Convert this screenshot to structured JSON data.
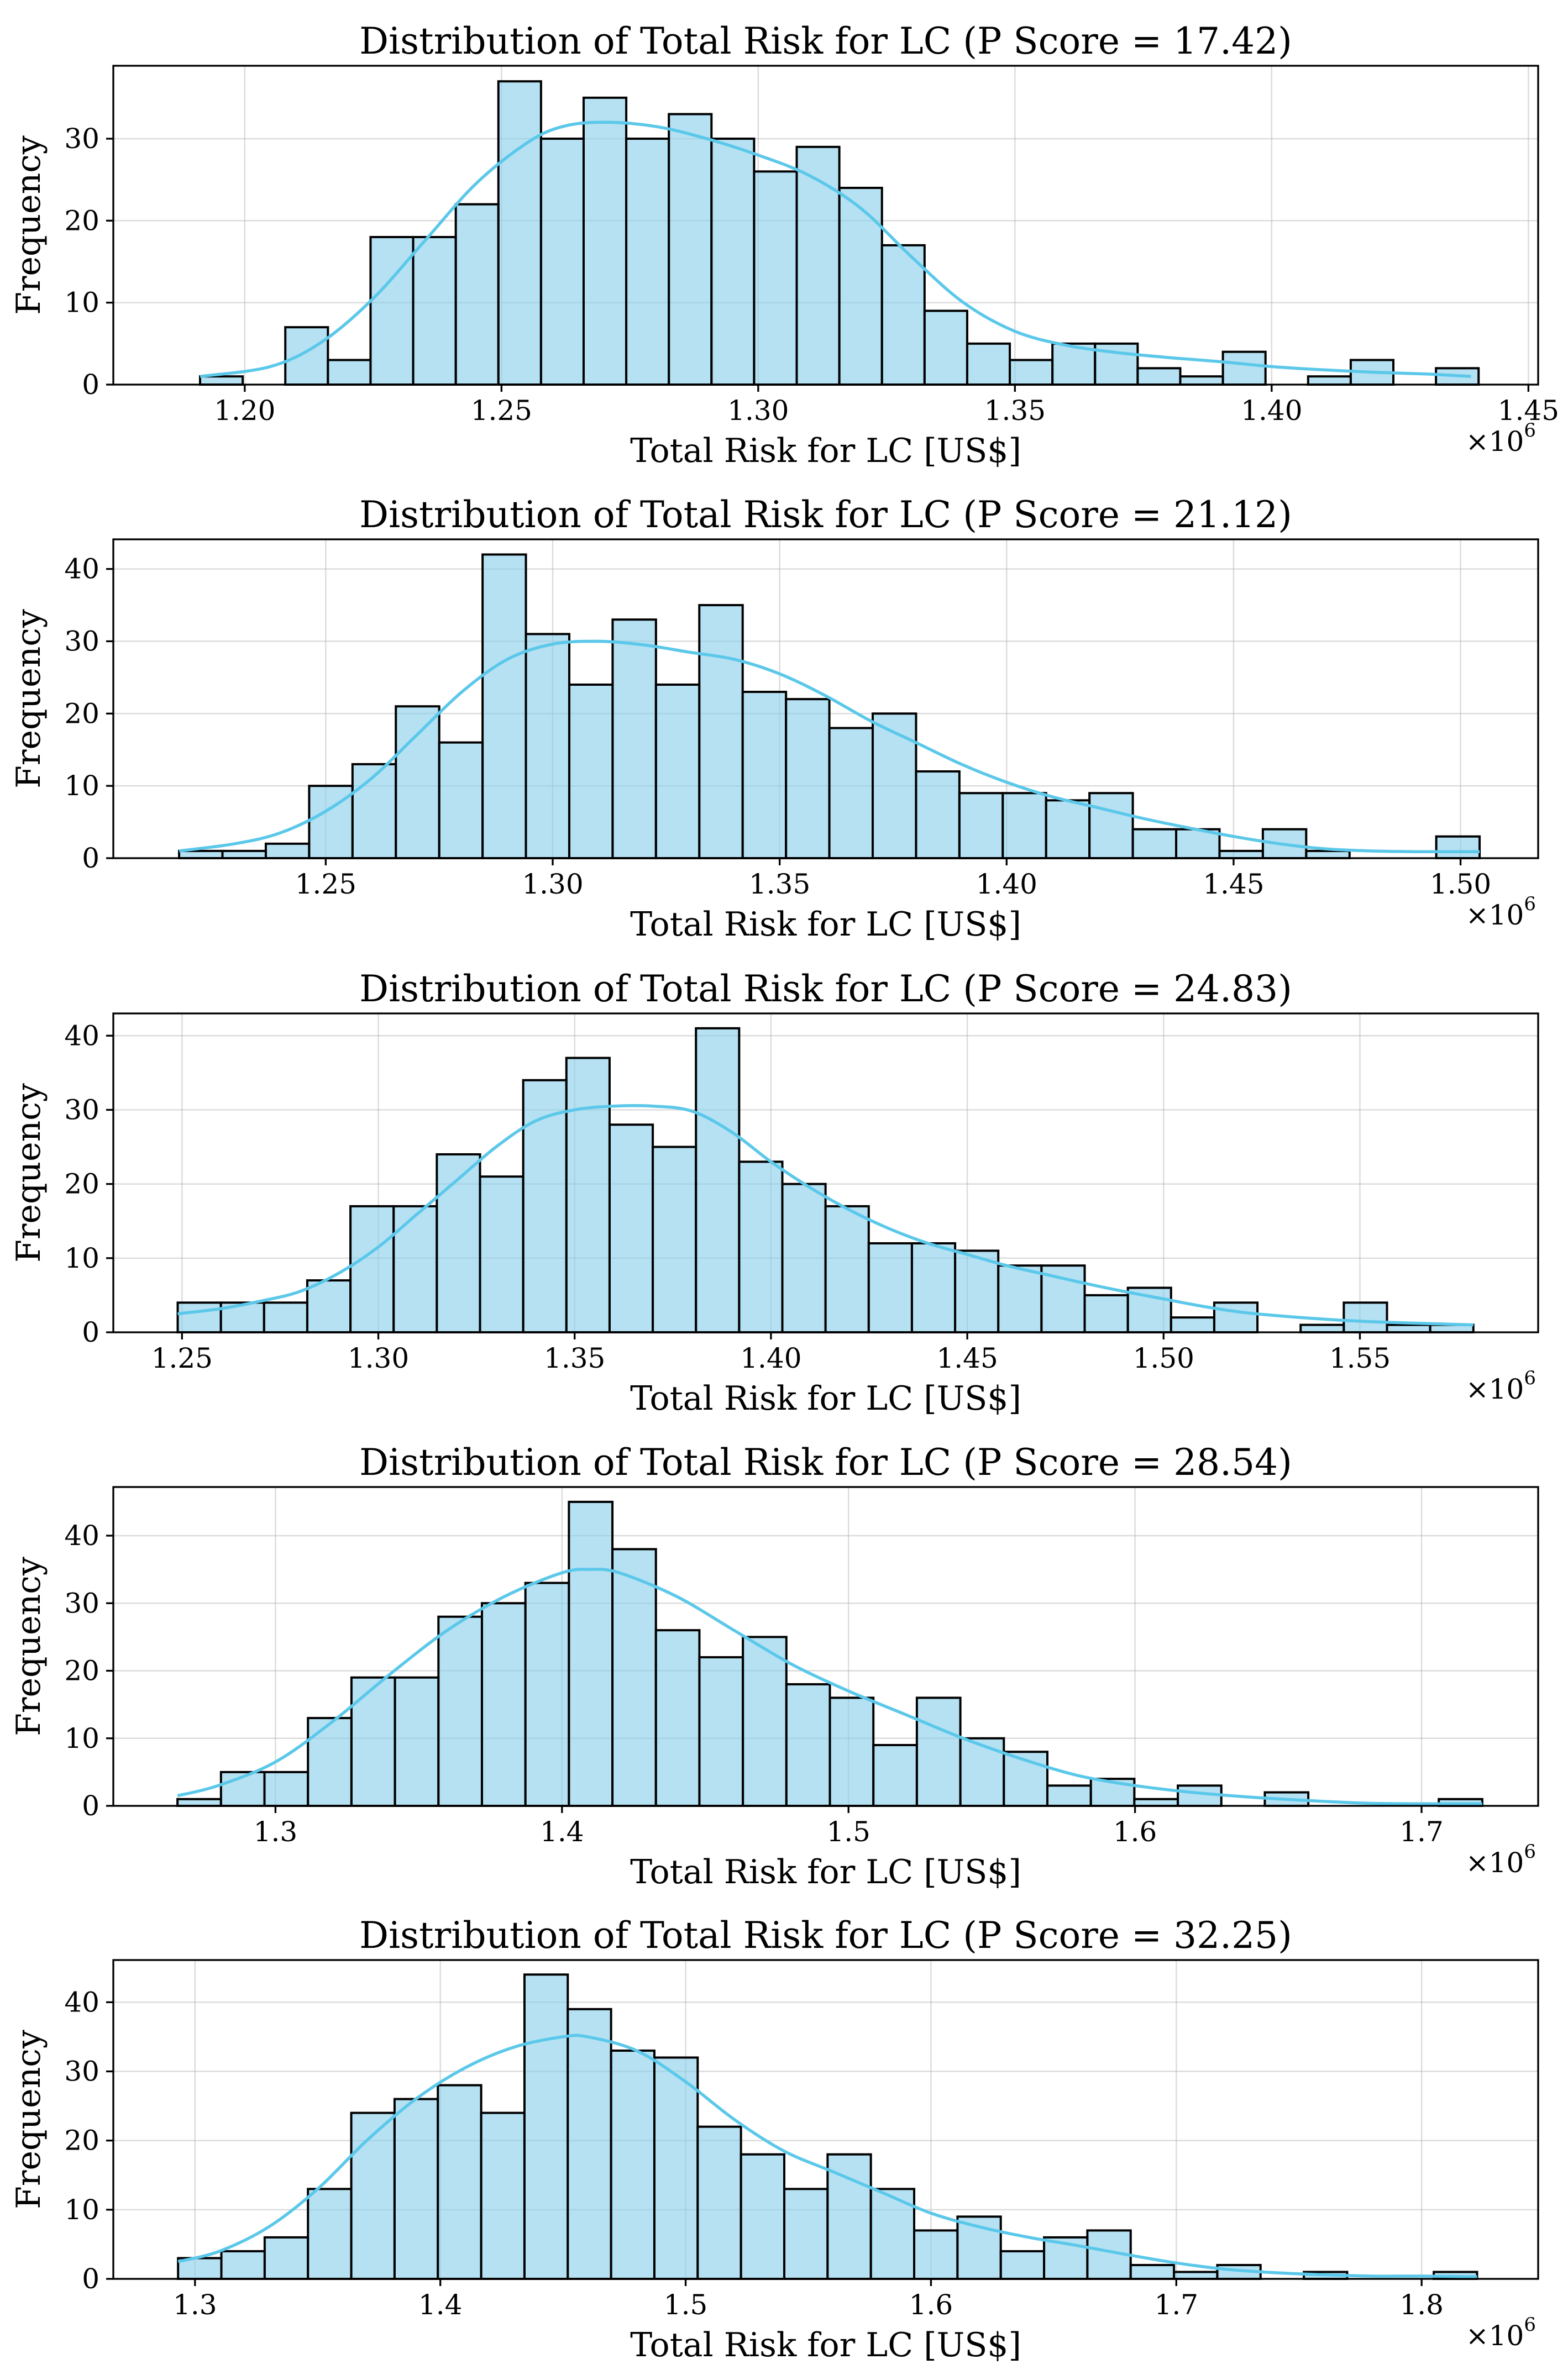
{
  "colors": {
    "bar_fill": "#87ceeb",
    "bar_edge": "#000000",
    "kde_line": "#5bc8ea",
    "grid": "#b0b0b0"
  },
  "chart_data": [
    {
      "type": "bar",
      "title": "Distribution of Total Risk for LC (P Score = 17.42)",
      "xlabel": "Total Risk for LC [US$]",
      "ylabel": "Frequency",
      "x_multiplier": "×10",
      "x_multiplier_exp": "6",
      "grid": true,
      "xlim": [
        1.1744,
        1.4519
      ],
      "ylim": [
        0,
        38.9
      ],
      "bin_start": 1.1913,
      "bin_width": 0.0083,
      "values": [
        1,
        0,
        7,
        3,
        18,
        18,
        22,
        37,
        30,
        35,
        30,
        33,
        30,
        26,
        29,
        24,
        17,
        9,
        5,
        3,
        5,
        5,
        2,
        1,
        4,
        0,
        1,
        3,
        0,
        2
      ],
      "kde": [
        [
          1.1913,
          1.0
        ],
        [
          1.205,
          2.2
        ],
        [
          1.215,
          5.2
        ],
        [
          1.225,
          10.5
        ],
        [
          1.235,
          17.5
        ],
        [
          1.245,
          24.5
        ],
        [
          1.255,
          29.5
        ],
        [
          1.262,
          31.5
        ],
        [
          1.27,
          32.0
        ],
        [
          1.28,
          31.5
        ],
        [
          1.29,
          30.0
        ],
        [
          1.3,
          28.0
        ],
        [
          1.31,
          25.5
        ],
        [
          1.32,
          21.5
        ],
        [
          1.33,
          15.5
        ],
        [
          1.34,
          10.0
        ],
        [
          1.35,
          6.5
        ],
        [
          1.36,
          4.8
        ],
        [
          1.37,
          3.9
        ],
        [
          1.38,
          3.3
        ],
        [
          1.39,
          2.8
        ],
        [
          1.4,
          2.2
        ],
        [
          1.41,
          1.8
        ],
        [
          1.42,
          1.5
        ],
        [
          1.43,
          1.3
        ],
        [
          1.4388,
          1.0
        ]
      ],
      "xticks": [
        {
          "v": 1.2,
          "label": "1.20"
        },
        {
          "v": 1.25,
          "label": "1.25"
        },
        {
          "v": 1.3,
          "label": "1.30"
        },
        {
          "v": 1.35,
          "label": "1.35"
        },
        {
          "v": 1.4,
          "label": "1.40"
        },
        {
          "v": 1.45,
          "label": "1.45"
        }
      ],
      "yticks": [
        {
          "v": 0,
          "label": "0"
        },
        {
          "v": 10,
          "label": "10"
        },
        {
          "v": 20,
          "label": "20"
        },
        {
          "v": 30,
          "label": "30"
        }
      ]
    },
    {
      "type": "bar",
      "title": "Distribution of Total Risk for LC (P Score = 21.12)",
      "xlabel": "Total Risk for LC [US$]",
      "ylabel": "Frequency",
      "x_multiplier": "×10",
      "x_multiplier_exp": "6",
      "grid": true,
      "xlim": [
        1.2032,
        1.5171
      ],
      "ylim": [
        0,
        44.1
      ],
      "bin_start": 1.2177,
      "bin_width": 0.00955,
      "values": [
        1,
        1,
        2,
        10,
        13,
        21,
        16,
        42,
        31,
        24,
        33,
        24,
        35,
        23,
        22,
        18,
        20,
        12,
        9,
        9,
        8,
        9,
        4,
        4,
        1,
        4,
        1,
        0,
        0,
        3
      ],
      "kde": [
        [
          1.2177,
          1.0
        ],
        [
          1.23,
          2.0
        ],
        [
          1.24,
          3.5
        ],
        [
          1.25,
          6.5
        ],
        [
          1.26,
          11.0
        ],
        [
          1.27,
          17.0
        ],
        [
          1.28,
          23.0
        ],
        [
          1.29,
          27.5
        ],
        [
          1.3,
          29.6
        ],
        [
          1.31,
          30.0
        ],
        [
          1.32,
          29.5
        ],
        [
          1.33,
          28.5
        ],
        [
          1.34,
          27.5
        ],
        [
          1.35,
          25.5
        ],
        [
          1.36,
          22.5
        ],
        [
          1.37,
          19.0
        ],
        [
          1.38,
          16.0
        ],
        [
          1.39,
          13.0
        ],
        [
          1.4,
          10.5
        ],
        [
          1.41,
          8.5
        ],
        [
          1.42,
          7.0
        ],
        [
          1.43,
          5.5
        ],
        [
          1.44,
          4.2
        ],
        [
          1.45,
          3.0
        ],
        [
          1.46,
          2.0
        ],
        [
          1.47,
          1.3
        ],
        [
          1.48,
          1.0
        ],
        [
          1.49,
          0.9
        ],
        [
          1.5042,
          0.9
        ]
      ],
      "xticks": [
        {
          "v": 1.25,
          "label": "1.25"
        },
        {
          "v": 1.3,
          "label": "1.30"
        },
        {
          "v": 1.35,
          "label": "1.35"
        },
        {
          "v": 1.4,
          "label": "1.40"
        },
        {
          "v": 1.45,
          "label": "1.45"
        },
        {
          "v": 1.5,
          "label": "1.50"
        }
      ],
      "yticks": [
        {
          "v": 0,
          "label": "0"
        },
        {
          "v": 10,
          "label": "10"
        },
        {
          "v": 20,
          "label": "20"
        },
        {
          "v": 30,
          "label": "30"
        },
        {
          "v": 40,
          "label": "40"
        }
      ]
    },
    {
      "type": "bar",
      "title": "Distribution of Total Risk for LC (P Score = 24.83)",
      "xlabel": "Total Risk for LC [US$]",
      "ylabel": "Frequency",
      "x_multiplier": "×10",
      "x_multiplier_exp": "6",
      "grid": true,
      "xlim": [
        1.2325,
        1.5954
      ],
      "ylim": [
        0,
        43.0
      ],
      "bin_start": 1.2489,
      "bin_width": 0.011,
      "values": [
        4,
        4,
        4,
        7,
        17,
        17,
        24,
        21,
        34,
        37,
        28,
        25,
        41,
        23,
        20,
        17,
        12,
        12,
        11,
        9,
        9,
        5,
        6,
        2,
        4,
        0,
        1,
        4,
        1,
        1
      ],
      "kde": [
        [
          1.2489,
          2.5
        ],
        [
          1.26,
          3.2
        ],
        [
          1.27,
          4.2
        ],
        [
          1.28,
          5.5
        ],
        [
          1.29,
          8.0
        ],
        [
          1.3,
          11.5
        ],
        [
          1.31,
          16.0
        ],
        [
          1.32,
          20.5
        ],
        [
          1.33,
          25.0
        ],
        [
          1.34,
          28.5
        ],
        [
          1.35,
          30.0
        ],
        [
          1.36,
          30.5
        ],
        [
          1.37,
          30.5
        ],
        [
          1.38,
          29.8
        ],
        [
          1.39,
          27.0
        ],
        [
          1.4,
          23.0
        ],
        [
          1.41,
          19.5
        ],
        [
          1.42,
          16.5
        ],
        [
          1.43,
          14.0
        ],
        [
          1.44,
          12.0
        ],
        [
          1.45,
          10.5
        ],
        [
          1.46,
          9.0
        ],
        [
          1.47,
          7.8
        ],
        [
          1.48,
          6.6
        ],
        [
          1.49,
          5.5
        ],
        [
          1.5,
          4.5
        ],
        [
          1.51,
          3.5
        ],
        [
          1.52,
          2.7
        ],
        [
          1.53,
          2.2
        ],
        [
          1.54,
          1.8
        ],
        [
          1.55,
          1.5
        ],
        [
          1.56,
          1.3
        ],
        [
          1.5789,
          1.0
        ]
      ],
      "xticks": [
        {
          "v": 1.25,
          "label": "1.25"
        },
        {
          "v": 1.3,
          "label": "1.30"
        },
        {
          "v": 1.35,
          "label": "1.35"
        },
        {
          "v": 1.4,
          "label": "1.40"
        },
        {
          "v": 1.45,
          "label": "1.45"
        },
        {
          "v": 1.5,
          "label": "1.50"
        },
        {
          "v": 1.55,
          "label": "1.55"
        }
      ],
      "yticks": [
        {
          "v": 0,
          "label": "0"
        },
        {
          "v": 10,
          "label": "10"
        },
        {
          "v": 20,
          "label": "20"
        },
        {
          "v": 30,
          "label": "30"
        },
        {
          "v": 40,
          "label": "40"
        }
      ]
    },
    {
      "type": "bar",
      "title": "Distribution of Total Risk for LC (P Score = 28.54)",
      "xlabel": "Total Risk for LC [US$]",
      "ylabel": "Frequency",
      "x_multiplier": "×10",
      "x_multiplier_exp": "6",
      "grid": true,
      "xlim": [
        1.2434,
        1.7407
      ],
      "ylim": [
        0,
        47.2
      ],
      "bin_start": 1.2658,
      "bin_width": 0.01518,
      "values": [
        1,
        5,
        5,
        13,
        19,
        19,
        28,
        30,
        33,
        45,
        38,
        26,
        22,
        25,
        18,
        16,
        9,
        16,
        10,
        8,
        3,
        4,
        1,
        3,
        0,
        2,
        0,
        0,
        0,
        1
      ],
      "kde": [
        [
          1.2658,
          1.5
        ],
        [
          1.28,
          3.0
        ],
        [
          1.3,
          6.5
        ],
        [
          1.32,
          12.5
        ],
        [
          1.34,
          19.5
        ],
        [
          1.36,
          26.0
        ],
        [
          1.38,
          31.0
        ],
        [
          1.4,
          34.5
        ],
        [
          1.41,
          35.0
        ],
        [
          1.42,
          34.5
        ],
        [
          1.44,
          31.0
        ],
        [
          1.46,
          26.0
        ],
        [
          1.48,
          21.0
        ],
        [
          1.5,
          17.0
        ],
        [
          1.52,
          13.5
        ],
        [
          1.54,
          10.0
        ],
        [
          1.56,
          7.0
        ],
        [
          1.58,
          4.5
        ],
        [
          1.6,
          3.0
        ],
        [
          1.62,
          2.0
        ],
        [
          1.64,
          1.3
        ],
        [
          1.66,
          0.8
        ],
        [
          1.68,
          0.4
        ],
        [
          1.7,
          0.3
        ],
        [
          1.7212,
          0.3
        ]
      ],
      "xticks": [
        {
          "v": 1.3,
          "label": "1.3"
        },
        {
          "v": 1.4,
          "label": "1.4"
        },
        {
          "v": 1.5,
          "label": "1.5"
        },
        {
          "v": 1.6,
          "label": "1.6"
        },
        {
          "v": 1.7,
          "label": "1.7"
        }
      ],
      "yticks": [
        {
          "v": 0,
          "label": "0"
        },
        {
          "v": 10,
          "label": "10"
        },
        {
          "v": 20,
          "label": "20"
        },
        {
          "v": 30,
          "label": "30"
        },
        {
          "v": 40,
          "label": "40"
        }
      ]
    },
    {
      "type": "bar",
      "title": "Distribution of Total Risk for LC (P Score = 32.25)",
      "xlabel": "Total Risk for LC [US$]",
      "ylabel": "Frequency",
      "x_multiplier": "×10",
      "x_multiplier_exp": "6",
      "grid": true,
      "xlim": [
        1.2667,
        1.8475
      ],
      "ylim": [
        0,
        46.1
      ],
      "bin_start": 1.2931,
      "bin_width": 0.01765,
      "values": [
        3,
        4,
        6,
        13,
        24,
        26,
        28,
        24,
        44,
        39,
        33,
        32,
        22,
        18,
        13,
        18,
        13,
        7,
        9,
        4,
        6,
        7,
        2,
        1,
        2,
        0,
        1,
        0,
        0,
        1
      ],
      "kde": [
        [
          1.2931,
          2.5
        ],
        [
          1.31,
          4.0
        ],
        [
          1.33,
          7.5
        ],
        [
          1.35,
          13.0
        ],
        [
          1.37,
          20.0
        ],
        [
          1.39,
          26.0
        ],
        [
          1.41,
          30.5
        ],
        [
          1.43,
          33.5
        ],
        [
          1.45,
          35.0
        ],
        [
          1.46,
          35.0
        ],
        [
          1.48,
          33.0
        ],
        [
          1.5,
          28.5
        ],
        [
          1.52,
          23.0
        ],
        [
          1.54,
          18.5
        ],
        [
          1.56,
          15.5
        ],
        [
          1.58,
          12.5
        ],
        [
          1.6,
          9.5
        ],
        [
          1.62,
          7.5
        ],
        [
          1.64,
          6.0
        ],
        [
          1.66,
          4.8
        ],
        [
          1.68,
          3.5
        ],
        [
          1.7,
          2.3
        ],
        [
          1.72,
          1.4
        ],
        [
          1.74,
          0.9
        ],
        [
          1.76,
          0.6
        ],
        [
          1.78,
          0.4
        ],
        [
          1.8,
          0.4
        ],
        [
          1.8226,
          0.3
        ]
      ],
      "xticks": [
        {
          "v": 1.3,
          "label": "1.3"
        },
        {
          "v": 1.4,
          "label": "1.4"
        },
        {
          "v": 1.5,
          "label": "1.5"
        },
        {
          "v": 1.6,
          "label": "1.6"
        },
        {
          "v": 1.7,
          "label": "1.7"
        },
        {
          "v": 1.8,
          "label": "1.8"
        }
      ],
      "yticks": [
        {
          "v": 0,
          "label": "0"
        },
        {
          "v": 10,
          "label": "10"
        },
        {
          "v": 20,
          "label": "20"
        },
        {
          "v": 30,
          "label": "30"
        },
        {
          "v": 40,
          "label": "40"
        }
      ]
    }
  ]
}
